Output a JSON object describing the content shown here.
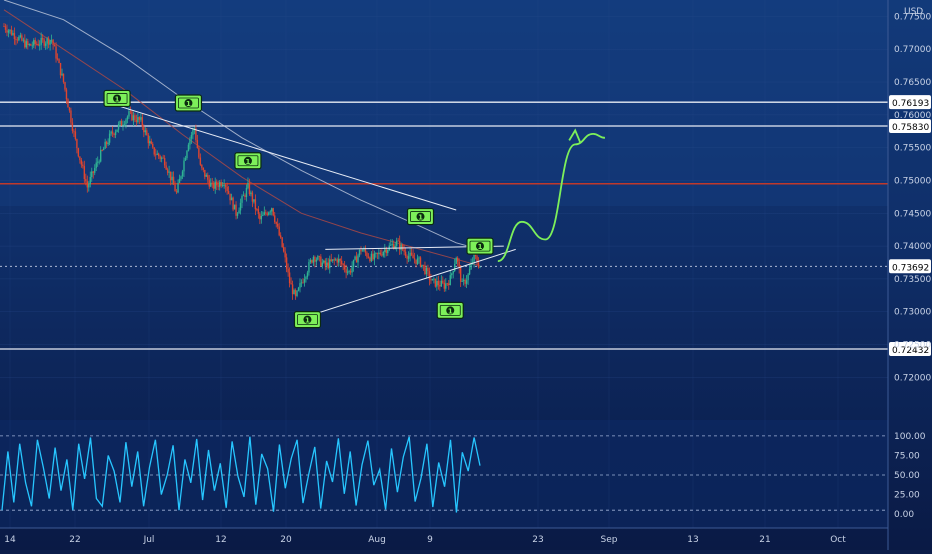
{
  "header": {
    "currency": "USD"
  },
  "colors": {
    "bg_top": "#123a7a",
    "bg_bottom": "#0b1b47",
    "up_candle": "#2fb394",
    "down_candle": "#e0452e",
    "ma_white": "#cfd6e6",
    "ma_red": "#b44a44",
    "oscillator": "#27c6ff",
    "signal_arrow": "#7df05a",
    "icon_fill": "#7df05a"
  },
  "chart_data": [
    {
      "type": "candlestick",
      "pair_quote": "USD",
      "ylim": [
        0.7135,
        0.7775
      ],
      "y_ticks": [
        "0.77500",
        "0.77000",
        "0.76500",
        "0.76000",
        "0.75500",
        "0.75000",
        "0.74500",
        "0.74000",
        "0.73500",
        "0.73000",
        "0.72500",
        "0.72000"
      ],
      "x_ticks": [
        "14",
        "22",
        "Jul",
        "12",
        "20",
        "Aug",
        "9",
        "23",
        "Sep",
        "13",
        "21",
        "Oct"
      ],
      "horizontal_levels": [
        {
          "price": "0.76193",
          "value": 0.76193
        },
        {
          "price": "0.75830",
          "value": 0.7583
        },
        {
          "price": "0.72432",
          "value": 0.72432
        }
      ],
      "red_level": 0.7495,
      "current_price": {
        "label": "0.73692",
        "value": 0.73692
      },
      "close_path": [
        [
          0,
          0.7735
        ],
        [
          4,
          0.7705
        ],
        [
          8,
          0.7715
        ],
        [
          10,
          0.765
        ],
        [
          12,
          0.756
        ],
        [
          14,
          0.749
        ],
        [
          16,
          0.7535
        ],
        [
          18,
          0.757
        ],
        [
          21,
          0.76
        ],
        [
          23,
          0.759
        ],
        [
          25,
          0.7545
        ],
        [
          27,
          0.753
        ],
        [
          29,
          0.748
        ],
        [
          31,
          0.756
        ],
        [
          32,
          0.758
        ],
        [
          33,
          0.752
        ],
        [
          35,
          0.749
        ],
        [
          37,
          0.75
        ],
        [
          39,
          0.745
        ],
        [
          41,
          0.749
        ],
        [
          43,
          0.744
        ],
        [
          45,
          0.746
        ],
        [
          47,
          0.739
        ],
        [
          48,
          0.7345
        ],
        [
          49,
          0.732
        ],
        [
          50,
          0.7345
        ],
        [
          52,
          0.7385
        ],
        [
          54,
          0.737
        ],
        [
          56,
          0.738
        ],
        [
          58,
          0.736
        ],
        [
          60,
          0.7395
        ],
        [
          62,
          0.738
        ],
        [
          64,
          0.7395
        ],
        [
          66,
          0.7405
        ],
        [
          68,
          0.7385
        ],
        [
          70,
          0.7375
        ],
        [
          72,
          0.7345
        ],
        [
          74,
          0.734
        ],
        [
          75,
          0.735
        ],
        [
          76,
          0.7385
        ],
        [
          77,
          0.734
        ],
        [
          78,
          0.7355
        ],
        [
          79,
          0.7385
        ],
        [
          80,
          0.7369
        ]
      ],
      "moving_averages": [
        {
          "name": "white",
          "points": [
            [
              0,
              0.7775
            ],
            [
              10,
              0.7745
            ],
            [
              20,
              0.769
            ],
            [
              30,
              0.7625
            ],
            [
              40,
              0.7565
            ],
            [
              50,
              0.7515
            ],
            [
              60,
              0.747
            ],
            [
              70,
              0.743
            ],
            [
              76,
              0.7405
            ],
            [
              80,
              0.7395
            ]
          ]
        },
        {
          "name": "red",
          "points": [
            [
              0,
              0.776
            ],
            [
              10,
              0.77
            ],
            [
              20,
              0.764
            ],
            [
              30,
              0.757
            ],
            [
              40,
              0.7505
            ],
            [
              50,
              0.745
            ],
            [
              60,
              0.742
            ],
            [
              70,
              0.7395
            ],
            [
              76,
              0.738
            ],
            [
              80,
              0.737
            ]
          ]
        }
      ],
      "trendlines": [
        {
          "from": [
            18,
            0.7617
          ],
          "to": [
            76,
            0.7455
          ]
        },
        {
          "from": [
            54,
            0.7395
          ],
          "to": [
            84,
            0.74
          ]
        },
        {
          "from": [
            50,
            0.729
          ],
          "to": [
            86,
            0.7395
          ]
        }
      ],
      "markers": [
        {
          "x": 19,
          "price": 0.7625,
          "label": "1"
        },
        {
          "x": 31,
          "price": 0.7618,
          "label": "1"
        },
        {
          "x": 41,
          "price": 0.753,
          "label": "1"
        },
        {
          "x": 51,
          "price": 0.7288,
          "label": "1"
        },
        {
          "x": 70,
          "price": 0.7445,
          "label": "1"
        },
        {
          "x": 75,
          "price": 0.7302,
          "label": "1"
        },
        {
          "x": 80,
          "price": 0.74,
          "label": "1"
        }
      ],
      "projection": [
        [
          83,
          0.7377
        ],
        [
          87,
          0.7437
        ],
        [
          91,
          0.741
        ],
        [
          96,
          0.7555
        ],
        [
          99,
          0.7571
        ],
        [
          101,
          0.7565
        ]
      ]
    },
    {
      "type": "line",
      "name": "oscillator",
      "ylim": [
        -5,
        105
      ],
      "y_ticks": [
        "100.00",
        "75.00",
        "50.00",
        "25.00",
        "0.00"
      ],
      "levels": [
        100,
        50,
        5
      ],
      "values": [
        5,
        80,
        15,
        90,
        40,
        10,
        95,
        60,
        20,
        85,
        30,
        70,
        5,
        90,
        45,
        98,
        20,
        10,
        75,
        55,
        15,
        92,
        35,
        80,
        10,
        60,
        95,
        25,
        50,
        88,
        5,
        70,
        40,
        96,
        18,
        82,
        30,
        65,
        8,
        93,
        48,
        22,
        99,
        12,
        77,
        58,
        3,
        89,
        33,
        71,
        95,
        14,
        52,
        86,
        7,
        68,
        41,
        97,
        26,
        80,
        11,
        63,
        94,
        37,
        57,
        6,
        84,
        28,
        73,
        99,
        16,
        46,
        90,
        9,
        66,
        35,
        95,
        2,
        79,
        55,
        98,
        62
      ]
    }
  ]
}
